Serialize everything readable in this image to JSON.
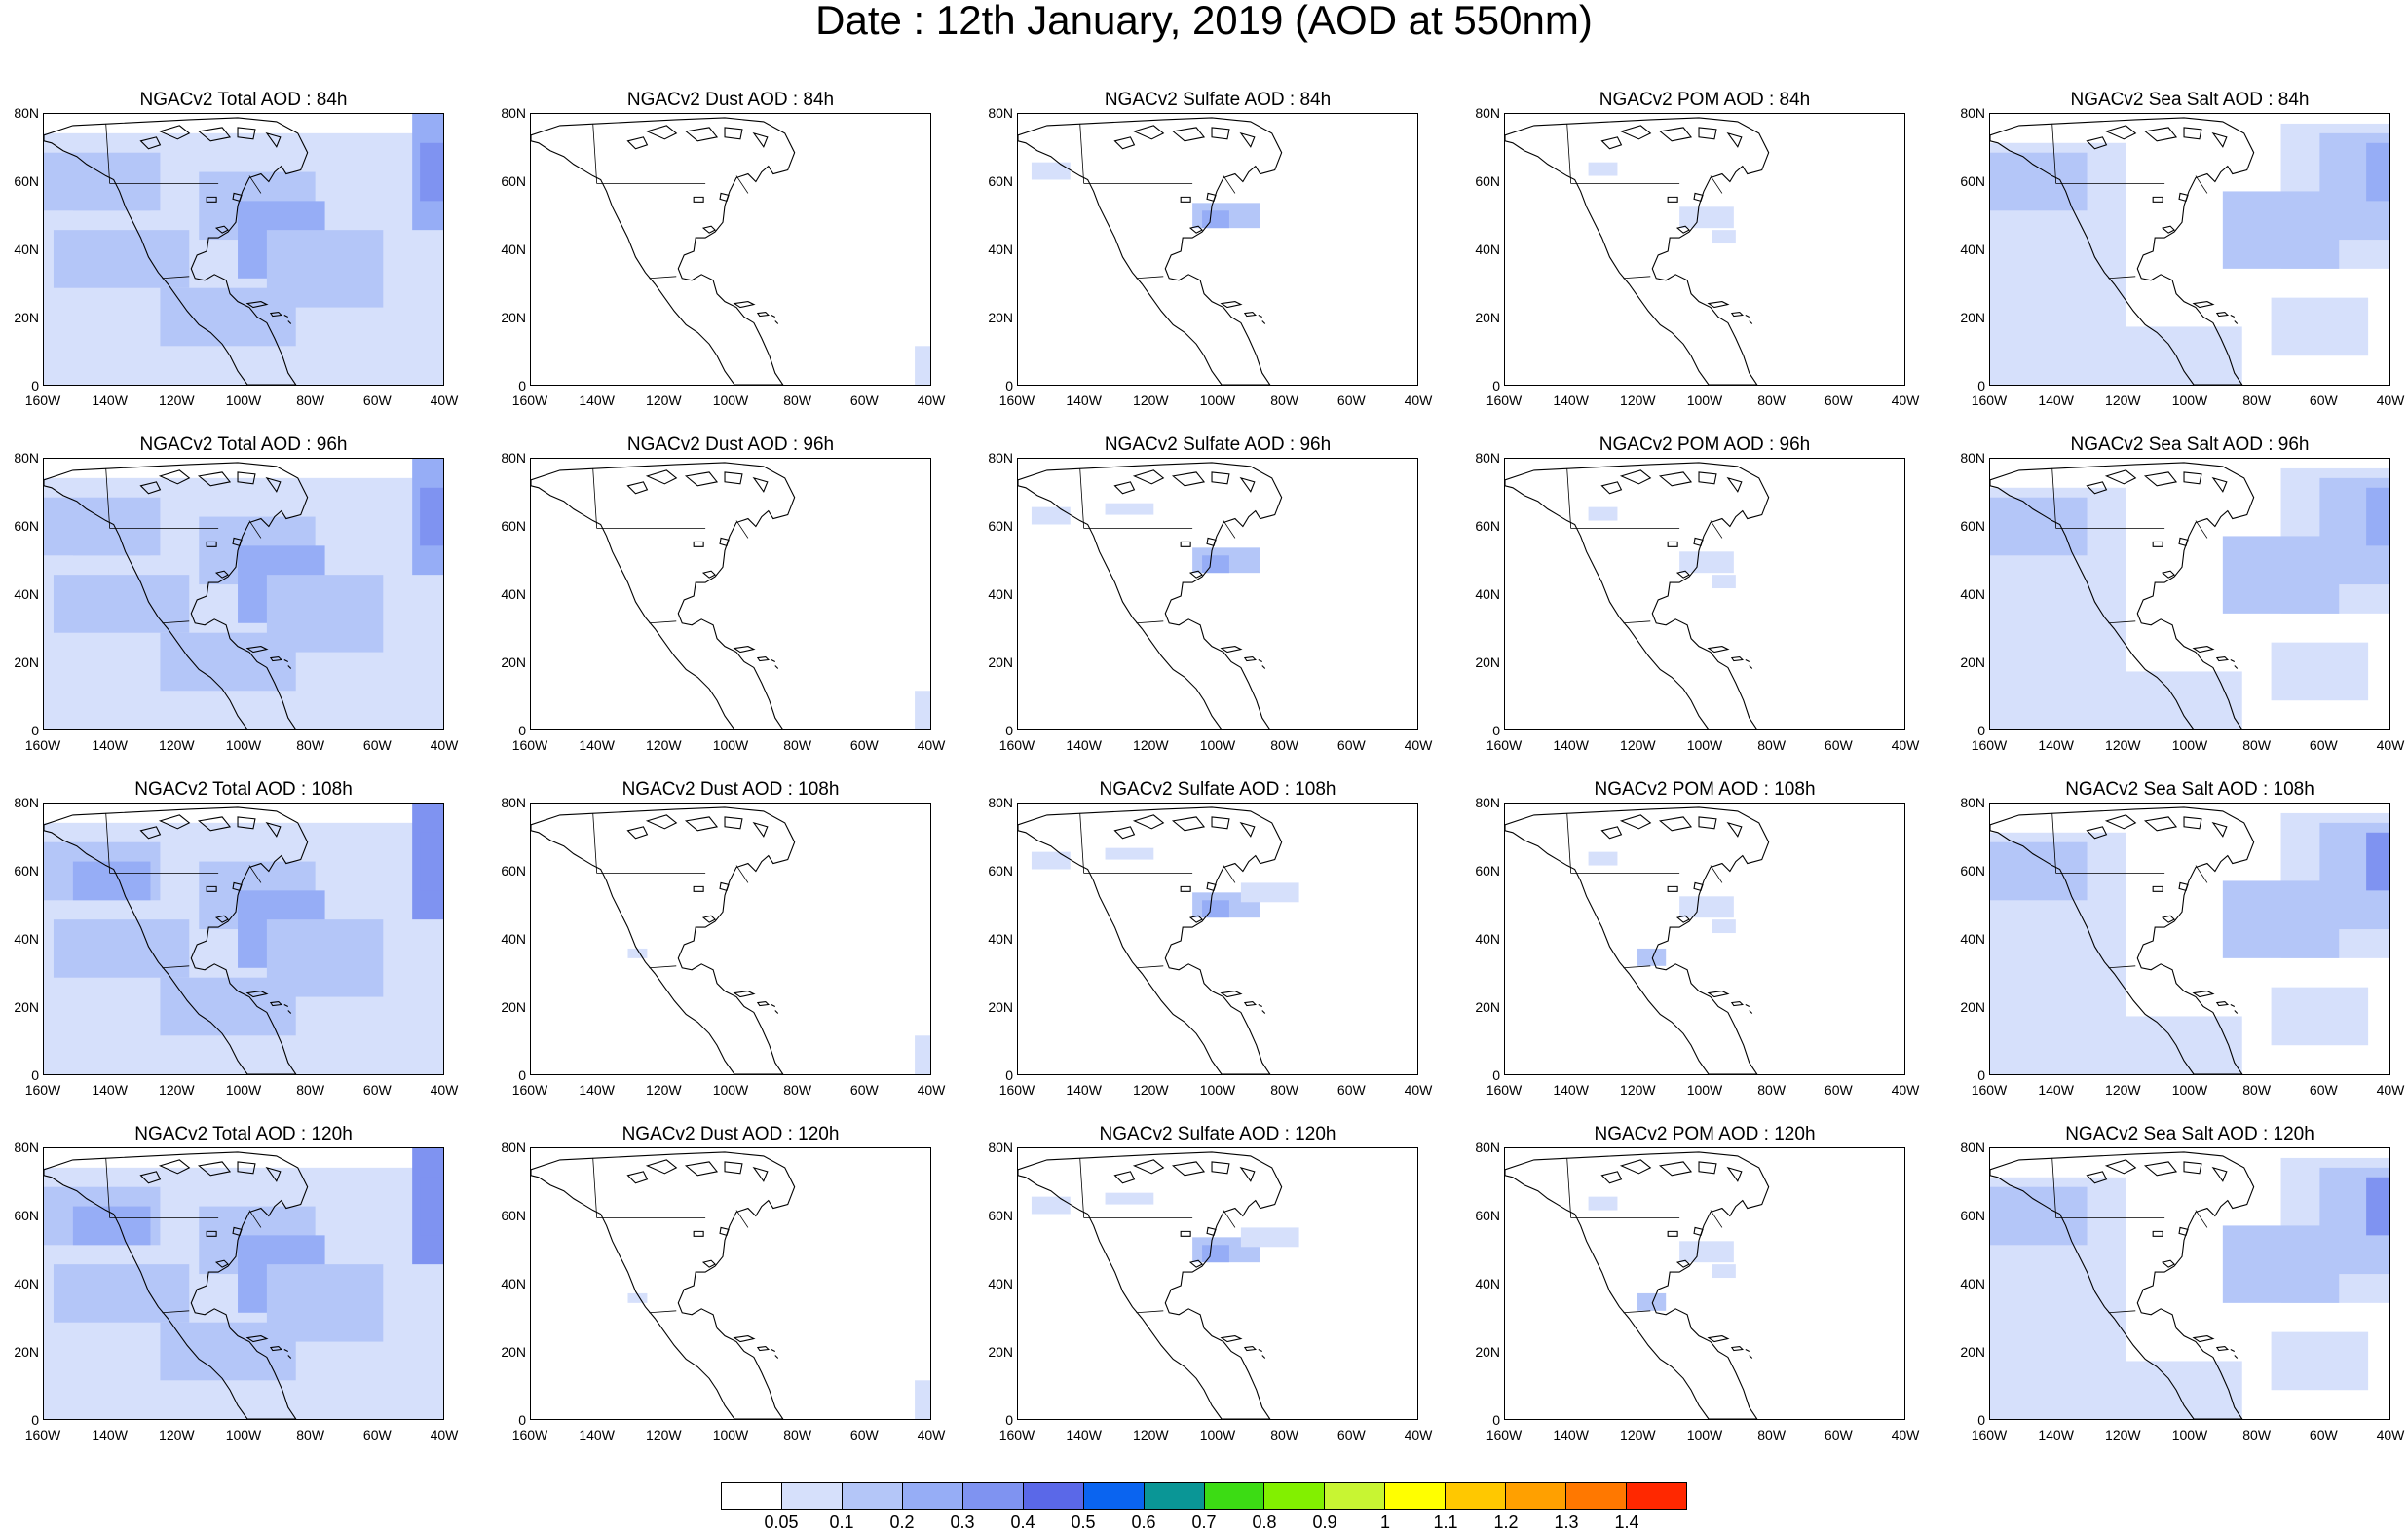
{
  "title": "Date : 12th January, 2019 (AOD at 550nm)",
  "axes": {
    "y_labels": [
      "80N",
      "60N",
      "40N",
      "20N",
      "0"
    ],
    "x_labels": [
      "160W",
      "140W",
      "120W",
      "100W",
      "80W",
      "60W",
      "40W"
    ]
  },
  "panels": [
    {
      "title": "NGACv2 Total AOD : 84h",
      "species": "total",
      "hour": 84
    },
    {
      "title": "NGACv2 Dust AOD : 84h",
      "species": "dust",
      "hour": 84
    },
    {
      "title": "NGACv2 Sulfate AOD : 84h",
      "species": "sulfate",
      "hour": 84
    },
    {
      "title": "NGACv2 POM AOD : 84h",
      "species": "pom",
      "hour": 84
    },
    {
      "title": "NGACv2 Sea Salt AOD : 84h",
      "species": "seasalt",
      "hour": 84
    },
    {
      "title": "NGACv2 Total AOD : 96h",
      "species": "total",
      "hour": 96
    },
    {
      "title": "NGACv2 Dust AOD : 96h",
      "species": "dust",
      "hour": 96
    },
    {
      "title": "NGACv2 Sulfate AOD : 96h",
      "species": "sulfate",
      "hour": 96
    },
    {
      "title": "NGACv2 POM AOD : 96h",
      "species": "pom",
      "hour": 96
    },
    {
      "title": "NGACv2 Sea Salt AOD : 96h",
      "species": "seasalt",
      "hour": 96
    },
    {
      "title": "NGACv2 Total AOD : 108h",
      "species": "total",
      "hour": 108
    },
    {
      "title": "NGACv2 Dust AOD : 108h",
      "species": "dust",
      "hour": 108
    },
    {
      "title": "NGACv2 Sulfate AOD : 108h",
      "species": "sulfate",
      "hour": 108
    },
    {
      "title": "NGACv2 POM AOD : 108h",
      "species": "pom",
      "hour": 108
    },
    {
      "title": "NGACv2 Sea Salt AOD : 108h",
      "species": "seasalt",
      "hour": 108
    },
    {
      "title": "NGACv2 Total AOD : 120h",
      "species": "total",
      "hour": 120
    },
    {
      "title": "NGACv2 Dust AOD : 120h",
      "species": "dust",
      "hour": 120
    },
    {
      "title": "NGACv2 Sulfate AOD : 120h",
      "species": "sulfate",
      "hour": 120
    },
    {
      "title": "NGACv2 POM AOD : 120h",
      "species": "pom",
      "hour": 120
    },
    {
      "title": "NGACv2 Sea Salt  AOD : 120h",
      "species": "seasalt",
      "hour": 120
    }
  ],
  "legend": {
    "labels": [
      "0.05",
      "0.1",
      "0.2",
      "0.3",
      "0.4",
      "0.5",
      "0.6",
      "0.7",
      "0.8",
      "0.9",
      "1",
      "1.1",
      "1.2",
      "1.3",
      "1.4"
    ],
    "colors": [
      "#ffffff",
      "#d6e0fb",
      "#b4c6f8",
      "#96adf6",
      "#7f93f1",
      "#5a68e8",
      "#0a64f0",
      "#0a9696",
      "#3cdc14",
      "#82f000",
      "#c8f532",
      "#ffff00",
      "#ffc800",
      "#ffa000",
      "#ff7800",
      "#ff2800"
    ]
  }
}
